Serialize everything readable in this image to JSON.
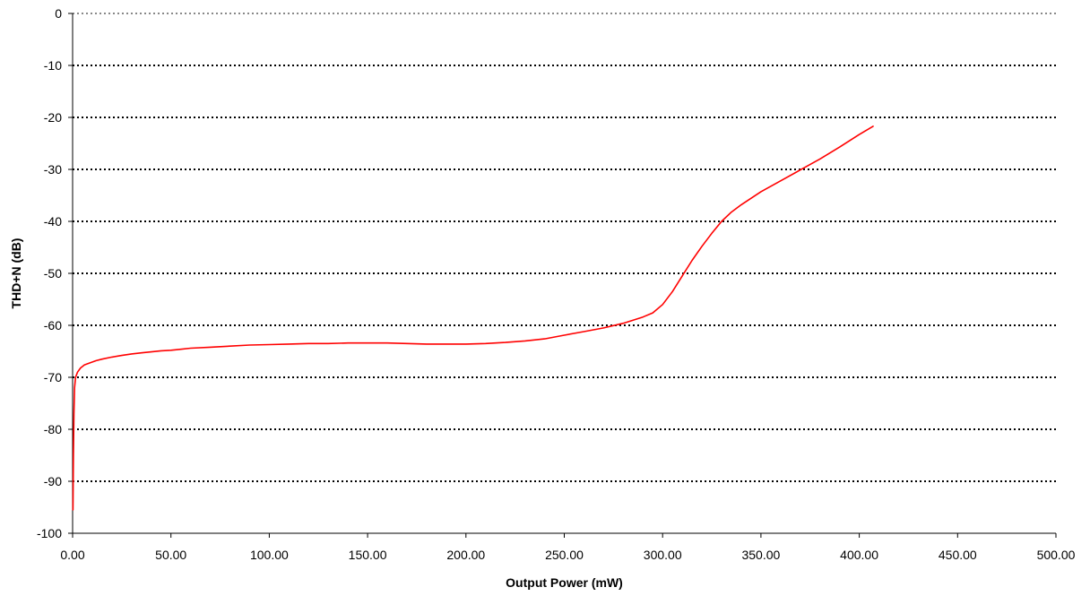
{
  "chart_data": {
    "type": "line",
    "title": "",
    "xlabel": "Output Power (mW)",
    "ylabel": "THD+N (dB)",
    "xlim": [
      0,
      500
    ],
    "ylim": [
      -100,
      0
    ],
    "x_ticks": [
      0,
      50,
      100,
      150,
      200,
      250,
      300,
      350,
      400,
      450,
      500
    ],
    "x_tick_labels": [
      "0.00",
      "50.00",
      "100.00",
      "150.00",
      "200.00",
      "250.00",
      "300.00",
      "350.00",
      "400.00",
      "450.00",
      "500.00"
    ],
    "y_ticks": [
      0,
      -10,
      -20,
      -30,
      -40,
      -50,
      -60,
      -70,
      -80,
      -90,
      -100
    ],
    "y_tick_labels": [
      "0",
      "-10",
      "-20",
      "-30",
      "-40",
      "-50",
      "-60",
      "-70",
      "-80",
      "-90",
      "-100"
    ],
    "grid": "horizontal dotted",
    "series": [
      {
        "color": "#ff0000",
        "points": [
          [
            0.2,
            -95.5
          ],
          [
            0.4,
            -85
          ],
          [
            0.7,
            -77
          ],
          [
            1,
            -72
          ],
          [
            1.5,
            -70
          ],
          [
            2.5,
            -69
          ],
          [
            4,
            -68.2
          ],
          [
            6,
            -67.6
          ],
          [
            9,
            -67.2
          ],
          [
            12,
            -66.8
          ],
          [
            15,
            -66.5
          ],
          [
            20,
            -66.1
          ],
          [
            25,
            -65.8
          ],
          [
            30,
            -65.5
          ],
          [
            35,
            -65.3
          ],
          [
            40,
            -65.1
          ],
          [
            45,
            -64.9
          ],
          [
            50,
            -64.8
          ],
          [
            55,
            -64.6
          ],
          [
            60,
            -64.4
          ],
          [
            70,
            -64.2
          ],
          [
            80,
            -64.0
          ],
          [
            90,
            -63.8
          ],
          [
            100,
            -63.7
          ],
          [
            110,
            -63.6
          ],
          [
            120,
            -63.5
          ],
          [
            130,
            -63.5
          ],
          [
            140,
            -63.4
          ],
          [
            150,
            -63.4
          ],
          [
            160,
            -63.4
          ],
          [
            170,
            -63.5
          ],
          [
            180,
            -63.6
          ],
          [
            190,
            -63.6
          ],
          [
            200,
            -63.6
          ],
          [
            210,
            -63.5
          ],
          [
            220,
            -63.3
          ],
          [
            230,
            -63.0
          ],
          [
            240,
            -62.6
          ],
          [
            250,
            -61.9
          ],
          [
            260,
            -61.2
          ],
          [
            270,
            -60.5
          ],
          [
            280,
            -59.6
          ],
          [
            290,
            -58.4
          ],
          [
            295,
            -57.6
          ],
          [
            300,
            -56.0
          ],
          [
            305,
            -53.5
          ],
          [
            310,
            -50.5
          ],
          [
            315,
            -47.5
          ],
          [
            320,
            -44.8
          ],
          [
            325,
            -42.3
          ],
          [
            330,
            -40.0
          ],
          [
            335,
            -38.2
          ],
          [
            340,
            -36.8
          ],
          [
            350,
            -34.3
          ],
          [
            360,
            -32.2
          ],
          [
            370,
            -30.1
          ],
          [
            380,
            -28.0
          ],
          [
            390,
            -25.7
          ],
          [
            400,
            -23.3
          ],
          [
            407,
            -21.7
          ]
        ]
      }
    ]
  }
}
